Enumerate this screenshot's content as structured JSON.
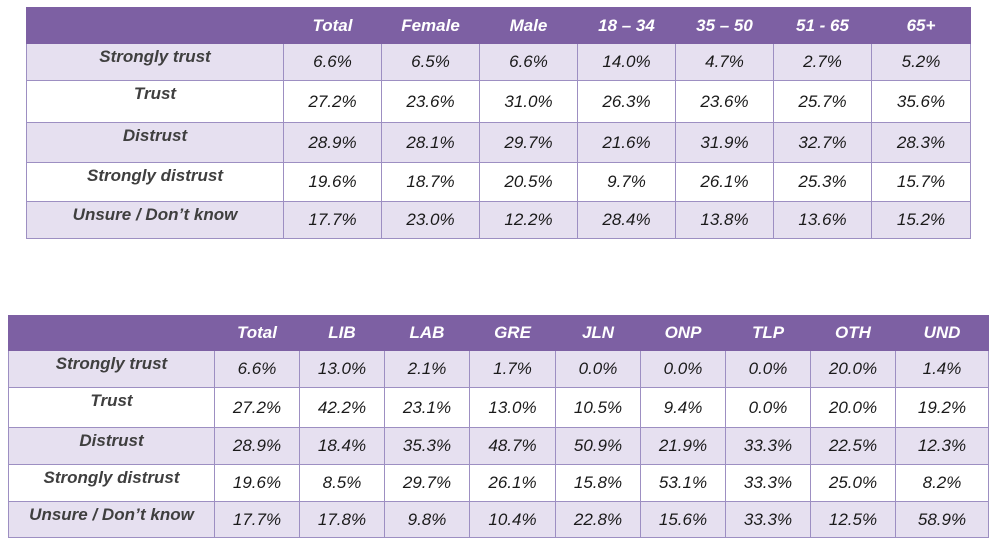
{
  "age_table": {
    "headers": [
      "",
      "Total",
      "Female",
      "Male",
      "18 – 34",
      "35 – 50",
      "51 - 65",
      "65+"
    ],
    "rows": [
      {
        "label": "Strongly trust",
        "values": [
          "6.6%",
          "6.5%",
          "6.6%",
          "14.0%",
          "4.7%",
          "2.7%",
          "5.2%"
        ]
      },
      {
        "label": "Trust",
        "values": [
          "27.2%",
          "23.6%",
          "31.0%",
          "26.3%",
          "23.6%",
          "25.7%",
          "35.6%"
        ]
      },
      {
        "label": "Distrust",
        "values": [
          "28.9%",
          "28.1%",
          "29.7%",
          "21.6%",
          "31.9%",
          "32.7%",
          "28.3%"
        ]
      },
      {
        "label": "Strongly distrust",
        "values": [
          "19.6%",
          "18.7%",
          "20.5%",
          "9.7%",
          "26.1%",
          "25.3%",
          "15.7%"
        ]
      },
      {
        "label": "Unsure / Don’t know",
        "values": [
          "17.7%",
          "23.0%",
          "12.2%",
          "28.4%",
          "13.8%",
          "13.6%",
          "15.2%"
        ]
      }
    ]
  },
  "party_table": {
    "headers": [
      "",
      "Total",
      "LIB",
      "LAB",
      "GRE",
      "JLN",
      "ONP",
      "TLP",
      "OTH",
      "UND"
    ],
    "rows": [
      {
        "label": "Strongly trust",
        "values": [
          "6.6%",
          "13.0%",
          "2.1%",
          "1.7%",
          "0.0%",
          "0.0%",
          "0.0%",
          "20.0%",
          "1.4%"
        ]
      },
      {
        "label": "Trust",
        "values": [
          "27.2%",
          "42.2%",
          "23.1%",
          "13.0%",
          "10.5%",
          "9.4%",
          "0.0%",
          "20.0%",
          "19.2%"
        ]
      },
      {
        "label": "Distrust",
        "values": [
          "28.9%",
          "18.4%",
          "35.3%",
          "48.7%",
          "50.9%",
          "21.9%",
          "33.3%",
          "22.5%",
          "12.3%"
        ]
      },
      {
        "label": "Strongly distrust",
        "values": [
          "19.6%",
          "8.5%",
          "29.7%",
          "26.1%",
          "15.8%",
          "53.1%",
          "33.3%",
          "25.0%",
          "8.2%"
        ]
      },
      {
        "label": "Unsure / Don’t know",
        "values": [
          "17.7%",
          "17.8%",
          "9.8%",
          "10.4%",
          "22.8%",
          "15.6%",
          "33.3%",
          "12.5%",
          "58.9%"
        ]
      }
    ]
  },
  "colors": {
    "header_bg": "#7d60a3",
    "shaded_row_bg": "#e6e0f0",
    "border": "#9d8fc2"
  }
}
